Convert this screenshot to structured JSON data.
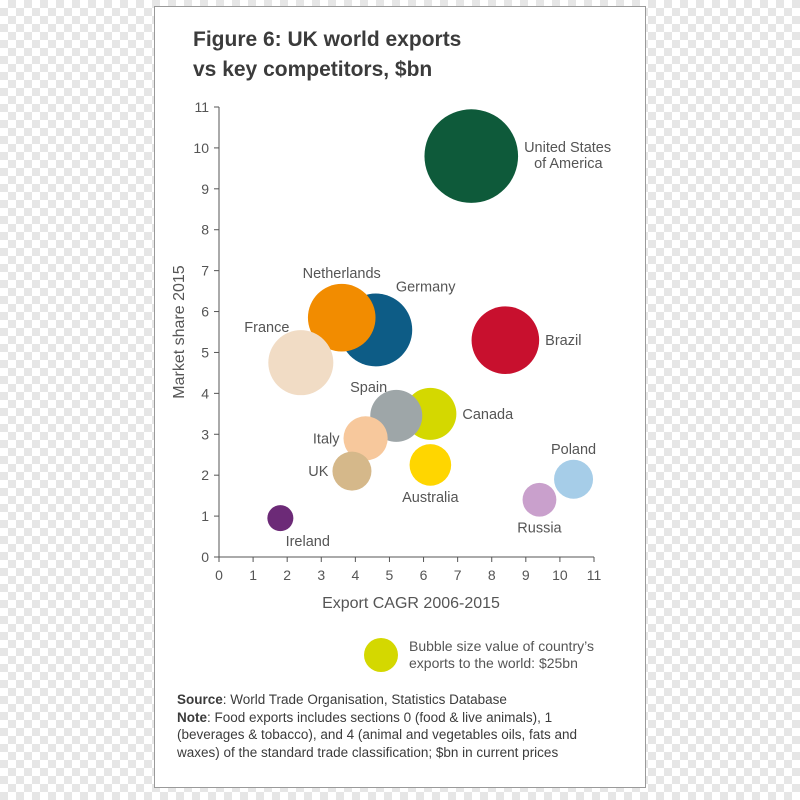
{
  "chart_data": {
    "type": "scatter",
    "title": "Figure 6: UK world exports",
    "subtitle": "vs key competitors, $bn",
    "xlabel": "Export CAGR 2006-2015",
    "ylabel": "Market share 2015",
    "xlim": [
      0,
      11
    ],
    "ylim": [
      0,
      11
    ],
    "xticks": [
      "0",
      "1",
      "2",
      "3",
      "4",
      "5",
      "6",
      "7",
      "8",
      "9",
      "10",
      "11"
    ],
    "yticks": [
      "0",
      "1",
      "2",
      "3",
      "4",
      "5",
      "6",
      "7",
      "8",
      "9",
      "10",
      "11"
    ],
    "grid": false,
    "points": [
      {
        "label": "United States",
        "label2": "of America",
        "x": 7.4,
        "y": 9.8,
        "size": 3.6,
        "color": "#0e5a3a",
        "label_side": "right"
      },
      {
        "label": "Brazil",
        "x": 8.4,
        "y": 5.3,
        "size": 2.6,
        "color": "#c8102e",
        "label_side": "right"
      },
      {
        "label": "Germany",
        "x": 4.6,
        "y": 5.55,
        "size": 2.8,
        "color": "#0d5c86",
        "label_side": "above-right"
      },
      {
        "label": "Netherlands",
        "x": 3.6,
        "y": 5.85,
        "size": 2.6,
        "color": "#f28c00",
        "label_side": "above"
      },
      {
        "label": "France",
        "x": 2.4,
        "y": 4.75,
        "size": 2.5,
        "color": "#f1dcc5",
        "label_side": "above-left"
      },
      {
        "label": "Canada",
        "x": 6.2,
        "y": 3.5,
        "size": 2.0,
        "color": "#d4d800",
        "label_side": "right"
      },
      {
        "label": "Spain",
        "x": 5.2,
        "y": 3.45,
        "size": 2.0,
        "color": "#9ea6a8",
        "label_side": "above-left"
      },
      {
        "label": "Italy",
        "x": 4.3,
        "y": 2.9,
        "size": 1.7,
        "color": "#f7c89c",
        "label_side": "left"
      },
      {
        "label": "UK",
        "x": 3.9,
        "y": 2.1,
        "size": 1.5,
        "color": "#d5b88a",
        "label_side": "left"
      },
      {
        "label": "Australia",
        "x": 6.2,
        "y": 2.25,
        "size": 1.6,
        "color": "#ffd600",
        "label_side": "below"
      },
      {
        "label": "Poland",
        "x": 10.4,
        "y": 1.9,
        "size": 1.5,
        "color": "#a6cde8",
        "label_side": "above"
      },
      {
        "label": "Russia",
        "x": 9.4,
        "y": 1.4,
        "size": 1.3,
        "color": "#c9a0cc",
        "label_side": "below"
      },
      {
        "label": "Ireland",
        "x": 1.8,
        "y": 0.95,
        "size": 1.0,
        "color": "#6c2a77",
        "label_side": "below-right"
      }
    ],
    "legend": {
      "color": "#d4d800",
      "line1": "Bubble size value of country’s",
      "line2": "exports to the world: $25bn"
    }
  },
  "notes": {
    "source_label": "Source",
    "source_text": ": World Trade Organisation, Statistics Database",
    "note_label": "Note",
    "note_line1": ": Food exports includes sections 0 (food & live animals), 1",
    "note_line2": "(beverages & tobacco), and 4 (animal and vegetables oils, fats and",
    "note_line3": "waxes) of the standard trade classification; $bn in current prices"
  }
}
